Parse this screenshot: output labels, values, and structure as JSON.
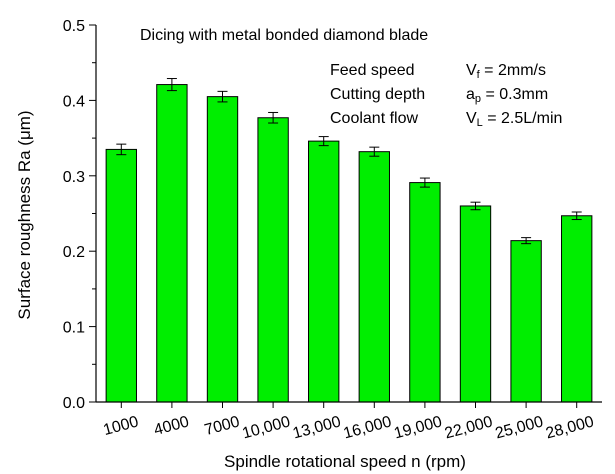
{
  "chart_data": {
    "type": "bar",
    "title": "Dicing with metal bonded diamond blade",
    "xlabel": "Spindle rotational speed n (rpm)",
    "ylabel": "Surface roughness Ra (μm)",
    "categories": [
      "1000",
      "4000",
      "7000",
      "10,000",
      "13,000",
      "16,000",
      "19,000",
      "22,000",
      "25,000",
      "28,000"
    ],
    "values": [
      0.335,
      0.421,
      0.405,
      0.377,
      0.346,
      0.332,
      0.291,
      0.26,
      0.214,
      0.247
    ],
    "errors": [
      0.007,
      0.008,
      0.007,
      0.007,
      0.006,
      0.006,
      0.006,
      0.005,
      0.004,
      0.005
    ],
    "ylim": [
      0,
      0.5
    ],
    "yticks": [
      "0.0",
      "0.1",
      "0.2",
      "0.3",
      "0.4",
      "0.5"
    ],
    "bar_color": "#00ee00",
    "grid": false,
    "annotations": [
      {
        "label": "Feed speed",
        "symbol": "V",
        "sub": "f",
        "value": "= 2mm/s"
      },
      {
        "label": "Cutting depth",
        "symbol": "a",
        "sub": "p",
        "value": "= 0.3mm"
      },
      {
        "label": "Coolant flow",
        "symbol": "V",
        "sub": "L",
        "value": "= 2.5L/min"
      }
    ]
  }
}
